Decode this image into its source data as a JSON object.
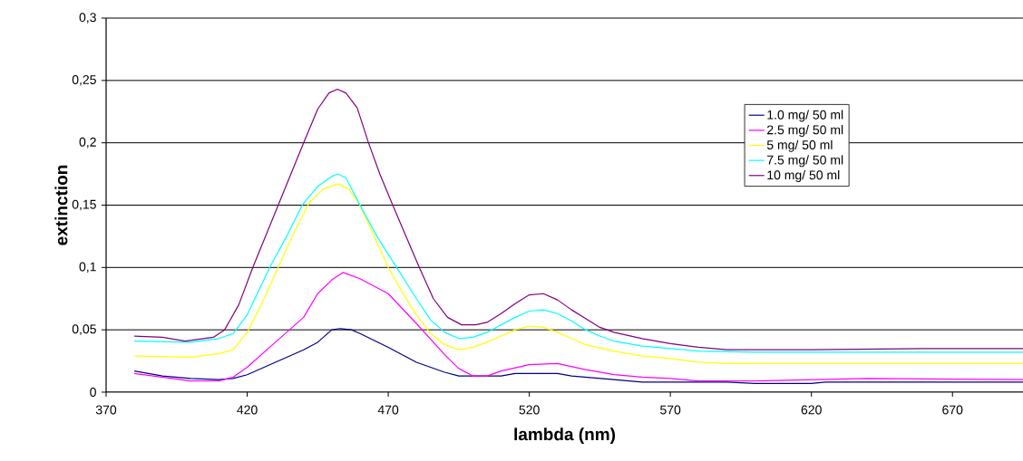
{
  "chart_data": {
    "type": "line",
    "xlabel": "lambda (nm)",
    "ylabel": "extinction",
    "xlim": [
      370,
      695
    ],
    "xticks": [
      370,
      420,
      470,
      520,
      570,
      620,
      670
    ],
    "ylim": [
      0,
      0.3
    ],
    "yticks": [
      {
        "value": 0,
        "label": "0"
      },
      {
        "value": 0.05,
        "label": "0,05"
      },
      {
        "value": 0.1,
        "label": "0,1"
      },
      {
        "value": 0.15,
        "label": "0,15"
      },
      {
        "value": 0.2,
        "label": "0,2"
      },
      {
        "value": 0.25,
        "label": "0,25"
      },
      {
        "value": 0.3,
        "label": "0,3"
      }
    ],
    "grid": "y",
    "legend": "top right",
    "series": [
      {
        "name": "1.0 mg/ 50 ml",
        "color": "#000080",
        "x": [
          380,
          390,
          400,
          410,
          415,
          420,
          430,
          440,
          445,
          450,
          453,
          457,
          460,
          470,
          480,
          490,
          495,
          510,
          515,
          530,
          535,
          550,
          560,
          590,
          600,
          620,
          625,
          695
        ],
        "values": [
          0.017,
          0.013,
          0.011,
          0.01,
          0.011,
          0.014,
          0.024,
          0.034,
          0.04,
          0.05,
          0.051,
          0.05,
          0.047,
          0.036,
          0.024,
          0.016,
          0.013,
          0.013,
          0.015,
          0.015,
          0.013,
          0.01,
          0.008,
          0.008,
          0.007,
          0.007,
          0.008,
          0.008
        ]
      },
      {
        "name": "2.5 mg/ 50 ml",
        "color": "#ff00ff",
        "x": [
          380,
          390,
          400,
          410,
          415,
          420,
          430,
          440,
          445,
          450,
          454,
          460,
          470,
          480,
          490,
          495,
          500,
          505,
          510,
          520,
          530,
          540,
          550,
          560,
          570,
          580,
          600,
          620,
          640,
          695
        ],
        "values": [
          0.015,
          0.012,
          0.009,
          0.009,
          0.012,
          0.02,
          0.04,
          0.06,
          0.079,
          0.09,
          0.096,
          0.091,
          0.079,
          0.055,
          0.03,
          0.019,
          0.013,
          0.013,
          0.017,
          0.022,
          0.023,
          0.018,
          0.014,
          0.012,
          0.011,
          0.009,
          0.009,
          0.01,
          0.011,
          0.01
        ]
      },
      {
        "name": "5 mg/ 50 ml",
        "color": "#ffff00",
        "x": [
          380,
          400,
          410,
          415,
          420,
          425,
          431,
          437,
          442,
          447,
          452,
          456,
          460,
          465,
          470,
          475,
          480,
          485,
          490,
          495,
          500,
          505,
          510,
          515,
          520,
          525,
          530,
          535,
          540,
          550,
          560,
          570,
          580,
          590,
          695
        ],
        "values": [
          0.029,
          0.028,
          0.031,
          0.034,
          0.048,
          0.07,
          0.1,
          0.13,
          0.152,
          0.163,
          0.167,
          0.163,
          0.15,
          0.125,
          0.1,
          0.08,
          0.062,
          0.047,
          0.038,
          0.034,
          0.036,
          0.04,
          0.045,
          0.05,
          0.053,
          0.052,
          0.048,
          0.043,
          0.038,
          0.033,
          0.029,
          0.027,
          0.024,
          0.023,
          0.023
        ]
      },
      {
        "name": "7.5 mg/ 50 ml",
        "color": "#00ffff",
        "x": [
          380,
          400,
          410,
          415,
          420,
          428,
          434,
          439.5,
          445,
          450,
          452,
          455,
          460,
          466,
          473,
          480,
          485,
          490,
          495,
          500,
          505,
          510,
          515,
          520,
          525,
          530,
          535,
          540,
          545,
          550,
          560,
          570,
          580,
          600,
          695
        ],
        "values": [
          0.041,
          0.04,
          0.043,
          0.047,
          0.062,
          0.1,
          0.125,
          0.15,
          0.165,
          0.173,
          0.175,
          0.172,
          0.15,
          0.125,
          0.1,
          0.075,
          0.058,
          0.048,
          0.043,
          0.044,
          0.048,
          0.054,
          0.06,
          0.065,
          0.066,
          0.063,
          0.057,
          0.05,
          0.045,
          0.041,
          0.037,
          0.035,
          0.033,
          0.032,
          0.032
        ]
      },
      {
        "name": "10 mg/ 50 ml",
        "color": "#800080",
        "x": [
          380,
          390,
          398,
          408,
          412,
          417,
          422,
          431,
          440,
          445,
          449,
          452,
          455,
          459,
          463,
          467,
          471.6,
          481,
          486,
          491,
          496,
          501,
          505,
          510,
          515,
          520,
          525,
          530,
          535,
          540,
          545,
          550,
          560,
          570,
          580,
          590,
          620,
          660,
          695
        ],
        "values": [
          0.045,
          0.044,
          0.041,
          0.044,
          0.05,
          0.07,
          0.1,
          0.15,
          0.2,
          0.227,
          0.24,
          0.243,
          0.24,
          0.228,
          0.2,
          0.175,
          0.15,
          0.1,
          0.075,
          0.06,
          0.054,
          0.054,
          0.056,
          0.063,
          0.071,
          0.078,
          0.079,
          0.074,
          0.066,
          0.059,
          0.052,
          0.048,
          0.043,
          0.039,
          0.036,
          0.034,
          0.034,
          0.035,
          0.035
        ]
      }
    ]
  }
}
